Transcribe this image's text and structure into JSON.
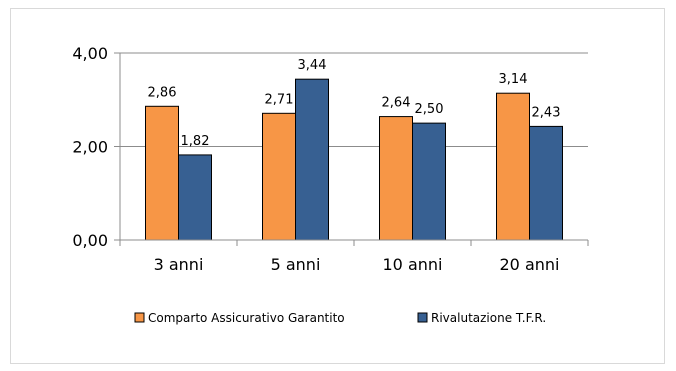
{
  "colors": {
    "series1": "#f79646",
    "series2": "#376092",
    "outline": "#000000",
    "gridline": "#8c8c8c",
    "frame": "#d9d9d9"
  },
  "chart_data": {
    "type": "bar",
    "categories": [
      "3 anni",
      "5 anni",
      "10 anni",
      "20 anni"
    ],
    "series": [
      {
        "name": "Comparto Assicurativo Garantito",
        "values": [
          2.86,
          2.71,
          2.64,
          3.14
        ],
        "labels": [
          "2,86",
          "2,71",
          "2,64",
          "3,14"
        ]
      },
      {
        "name": "Rivalutazione T.F.R.",
        "values": [
          1.82,
          3.44,
          2.5,
          2.43
        ],
        "labels": [
          "1,82",
          "3,44",
          "2,50",
          "2,43"
        ]
      }
    ],
    "title": "",
    "xlabel": "",
    "ylabel": "",
    "ylim": [
      0,
      4
    ],
    "yticks": [
      0,
      2,
      4
    ],
    "ytick_labels": [
      "0,00",
      "2,00",
      "4,00"
    ],
    "grid": true,
    "legend_position": "bottom"
  }
}
